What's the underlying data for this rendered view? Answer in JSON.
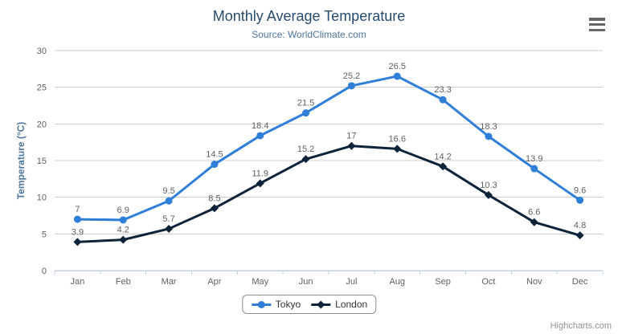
{
  "header": {
    "title": "Monthly Average Temperature",
    "subtitle": "Source: WorldClimate.com"
  },
  "icons": {
    "context_menu": "hamburger-icon"
  },
  "credits_label": "Highcharts.com",
  "colors": {
    "title": "#274b6d",
    "subtitle": "#4d759e",
    "axis_label": "#606060",
    "axis_title": "#4d759e",
    "grid": "#cccccc",
    "axis_line": "#c0d0e0",
    "tick": "#c0d0e0",
    "data_label": "#606060",
    "legend_border": "#909090",
    "credits": "#909090",
    "menu_icon": "#666666"
  },
  "chart_data": {
    "type": "line",
    "title": "Monthly Average Temperature",
    "subtitle": "Source: WorldClimate.com",
    "categories": [
      "Jan",
      "Feb",
      "Mar",
      "Apr",
      "May",
      "Jun",
      "Jul",
      "Aug",
      "Sep",
      "Oct",
      "Nov",
      "Dec"
    ],
    "series": [
      {
        "name": "Tokyo",
        "color": "#2f7ed8",
        "marker": "circle",
        "values": [
          7,
          6.9,
          9.5,
          14.5,
          18.4,
          21.5,
          25.2,
          26.5,
          23.3,
          18.3,
          13.9,
          9.6
        ]
      },
      {
        "name": "London",
        "color": "#0d233a",
        "marker": "diamond",
        "values": [
          3.9,
          4.2,
          5.7,
          8.5,
          11.9,
          15.2,
          17,
          16.6,
          14.2,
          10.3,
          6.6,
          4.8
        ]
      }
    ],
    "xlabel": "",
    "ylabel": "Temperature (°C)",
    "ylim": [
      0,
      30
    ],
    "ytick_step": 5,
    "grid": true,
    "data_labels": true,
    "legend_position": "bottom"
  }
}
